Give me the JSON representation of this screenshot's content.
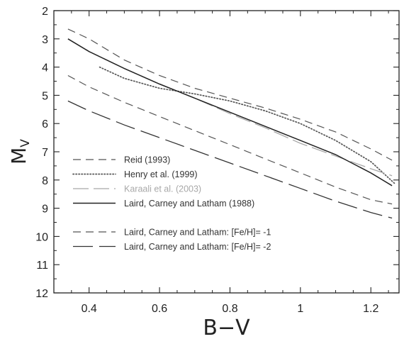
{
  "chart_data": {
    "type": "line",
    "title": "",
    "xlabel": "B−V",
    "ylabel": "M",
    "ylabel_subscript": "V",
    "xlim": [
      0.3,
      1.28
    ],
    "ylim": [
      12,
      2
    ],
    "y_inverted": true,
    "grid": false,
    "legend_placement": "bottom-left",
    "x_ticks": [
      0.4,
      0.6,
      0.8,
      1,
      1.2
    ],
    "x_tick_labels": [
      "0.4",
      "0.6",
      "0.8",
      "1",
      "1.2"
    ],
    "y_ticks": [
      2,
      3,
      4,
      5,
      6,
      7,
      8,
      9,
      10,
      11,
      12
    ],
    "y_tick_labels": [
      "2",
      "3",
      "4",
      "5",
      "6",
      "7",
      "8",
      "9",
      "10",
      "11",
      "12"
    ],
    "series": [
      {
        "name": "Reid (1993)",
        "style": "dashed-medium",
        "color": "#555555",
        "x": [
          0.34,
          0.4,
          0.5,
          0.6,
          0.7,
          0.8,
          0.9,
          1.0,
          1.1,
          1.2,
          1.26
        ],
        "y": [
          2.65,
          3.0,
          3.75,
          4.3,
          4.75,
          5.1,
          5.45,
          5.85,
          6.3,
          6.9,
          7.3
        ]
      },
      {
        "name": "Henry et al. (1999)",
        "style": "dotted",
        "color": "#555555",
        "x": [
          0.43,
          0.5,
          0.6,
          0.7,
          0.8,
          0.9,
          1.0,
          1.1,
          1.2,
          1.27
        ],
        "y": [
          4.0,
          4.4,
          4.75,
          4.95,
          5.2,
          5.55,
          6.0,
          6.6,
          7.35,
          8.15
        ]
      },
      {
        "name": "Karaali et al. (2003)",
        "style": "long-dashed",
        "color": "#a8a8a8",
        "x": [
          0.34,
          0.4,
          0.5,
          0.6,
          0.7,
          0.8,
          0.9,
          1.0,
          1.1,
          1.2,
          1.26
        ],
        "y": [
          3.0,
          3.45,
          4.05,
          4.6,
          5.1,
          5.65,
          6.15,
          6.7,
          7.15,
          7.6,
          7.85
        ]
      },
      {
        "name": "Laird, Carney and Latham (1988)",
        "style": "solid",
        "color": "#222222",
        "x": [
          0.34,
          0.4,
          0.5,
          0.6,
          0.7,
          0.8,
          0.9,
          1.0,
          1.1,
          1.2,
          1.26
        ],
        "y": [
          3.0,
          3.45,
          4.05,
          4.6,
          5.1,
          5.6,
          6.1,
          6.6,
          7.1,
          7.75,
          8.2
        ]
      },
      {
        "name": "Laird, Carney and Latham: [Fe/H]= -1",
        "style": "dashed-medium",
        "color": "#555555",
        "x": [
          0.34,
          0.4,
          0.5,
          0.6,
          0.7,
          0.8,
          0.9,
          1.0,
          1.1,
          1.2,
          1.26
        ],
        "y": [
          4.3,
          4.7,
          5.25,
          5.75,
          6.25,
          6.75,
          7.25,
          7.75,
          8.25,
          8.7,
          8.85
        ]
      },
      {
        "name": "Laird, Carney and Latham: [Fe/H]= -2",
        "style": "long-dash-sparse",
        "color": "#333333",
        "x": [
          0.34,
          0.4,
          0.5,
          0.6,
          0.7,
          0.8,
          0.9,
          1.0,
          1.1,
          1.2,
          1.26
        ],
        "y": [
          5.2,
          5.55,
          6.05,
          6.5,
          6.95,
          7.4,
          7.85,
          8.3,
          8.75,
          9.15,
          9.35
        ]
      }
    ],
    "legend": {
      "groups": [
        [
          "Reid (1993)",
          "Henry et al. (1999)",
          "Karaali et al. (2003)",
          "Laird, Carney and Latham (1988)"
        ],
        [
          "Laird, Carney and Latham: [Fe/H]= -1",
          "Laird, Carney and Latham: [Fe/H]= -2"
        ]
      ]
    }
  }
}
